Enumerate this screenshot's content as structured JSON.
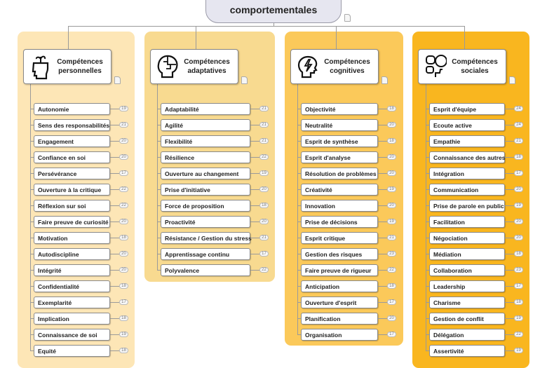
{
  "root": {
    "title": "comportementales"
  },
  "columns": [
    {
      "title": "Compétences personnelles",
      "icon": "head-plant-icon",
      "color": "#fde6b6",
      "items": [
        [
          "Autonomie",
          19
        ],
        [
          "Sens des responsabilités",
          21
        ],
        [
          "Engagement",
          20
        ],
        [
          "Confiance en soi",
          20
        ],
        [
          "Persévérance",
          17
        ],
        [
          "Ouverture à la critique",
          22
        ],
        [
          "Réflexion sur soi",
          22
        ],
        [
          "Faire preuve de curiosité",
          20
        ],
        [
          "Motivation",
          18
        ],
        [
          "Autodiscipline",
          20
        ],
        [
          "Intégrité",
          20
        ],
        [
          "Confidentialité",
          18
        ],
        [
          "Exemplarité",
          17
        ],
        [
          "Implication",
          18
        ],
        [
          "Connaissance de soi",
          19
        ],
        [
          "Equité",
          18
        ]
      ]
    },
    {
      "title": "Compétences adaptatives",
      "icon": "head-puzzle-icon",
      "color": "#f8da90",
      "items": [
        [
          "Adaptabilité",
          21
        ],
        [
          "Agilité",
          21
        ],
        [
          "Flexibilité",
          21
        ],
        [
          "Résilience",
          22
        ],
        [
          "Ouverture au changement",
          19
        ],
        [
          "Prise d'initiative",
          20
        ],
        [
          "Force de proposition",
          18
        ],
        [
          "Proactivité",
          20
        ],
        [
          "Résistance / Gestion du stress",
          21
        ],
        [
          "Apprentissage continu",
          17
        ],
        [
          "Polyvalence",
          22
        ]
      ]
    },
    {
      "title": "Compétences cognitives",
      "icon": "head-lightning-icon",
      "color": "#fbc95a",
      "items": [
        [
          "Objectivité",
          18
        ],
        [
          "Neutralité",
          20
        ],
        [
          "Esprit de synthèse",
          18
        ],
        [
          "Esprit d'analyse",
          20
        ],
        [
          "Résolution de problèmes",
          20
        ],
        [
          "Créativité",
          19
        ],
        [
          "Innovation",
          20
        ],
        [
          "Prise de décisions",
          19
        ],
        [
          "Esprit critique",
          21
        ],
        [
          "Gestion des risques",
          23
        ],
        [
          "Faire preuve de rigueur",
          22
        ],
        [
          "Anticipation",
          18
        ],
        [
          "Ouverture d'esprit",
          17
        ],
        [
          "Planification",
          20
        ],
        [
          "Organisation",
          17
        ]
      ]
    },
    {
      "title": "Compétences sociales",
      "icon": "head-speech-bubbles-icon",
      "color": "#f9b61f",
      "items": [
        [
          "Esprit d'équipe",
          24
        ],
        [
          "Ecoute active",
          24
        ],
        [
          "Empathie",
          21
        ],
        [
          "Connaissance des autres",
          18
        ],
        [
          "Intégration",
          17
        ],
        [
          "Communication",
          20
        ],
        [
          "Prise de parole en public",
          19
        ],
        [
          "Facilitation",
          20
        ],
        [
          "Négociation",
          20
        ],
        [
          "Médiation",
          18
        ],
        [
          "Collaboration",
          23
        ],
        [
          "Leadership",
          17
        ],
        [
          "Charisme",
          18
        ],
        [
          "Gestion de conflit",
          19
        ],
        [
          "Délégation",
          22
        ],
        [
          "Assertivité",
          19
        ]
      ]
    }
  ]
}
